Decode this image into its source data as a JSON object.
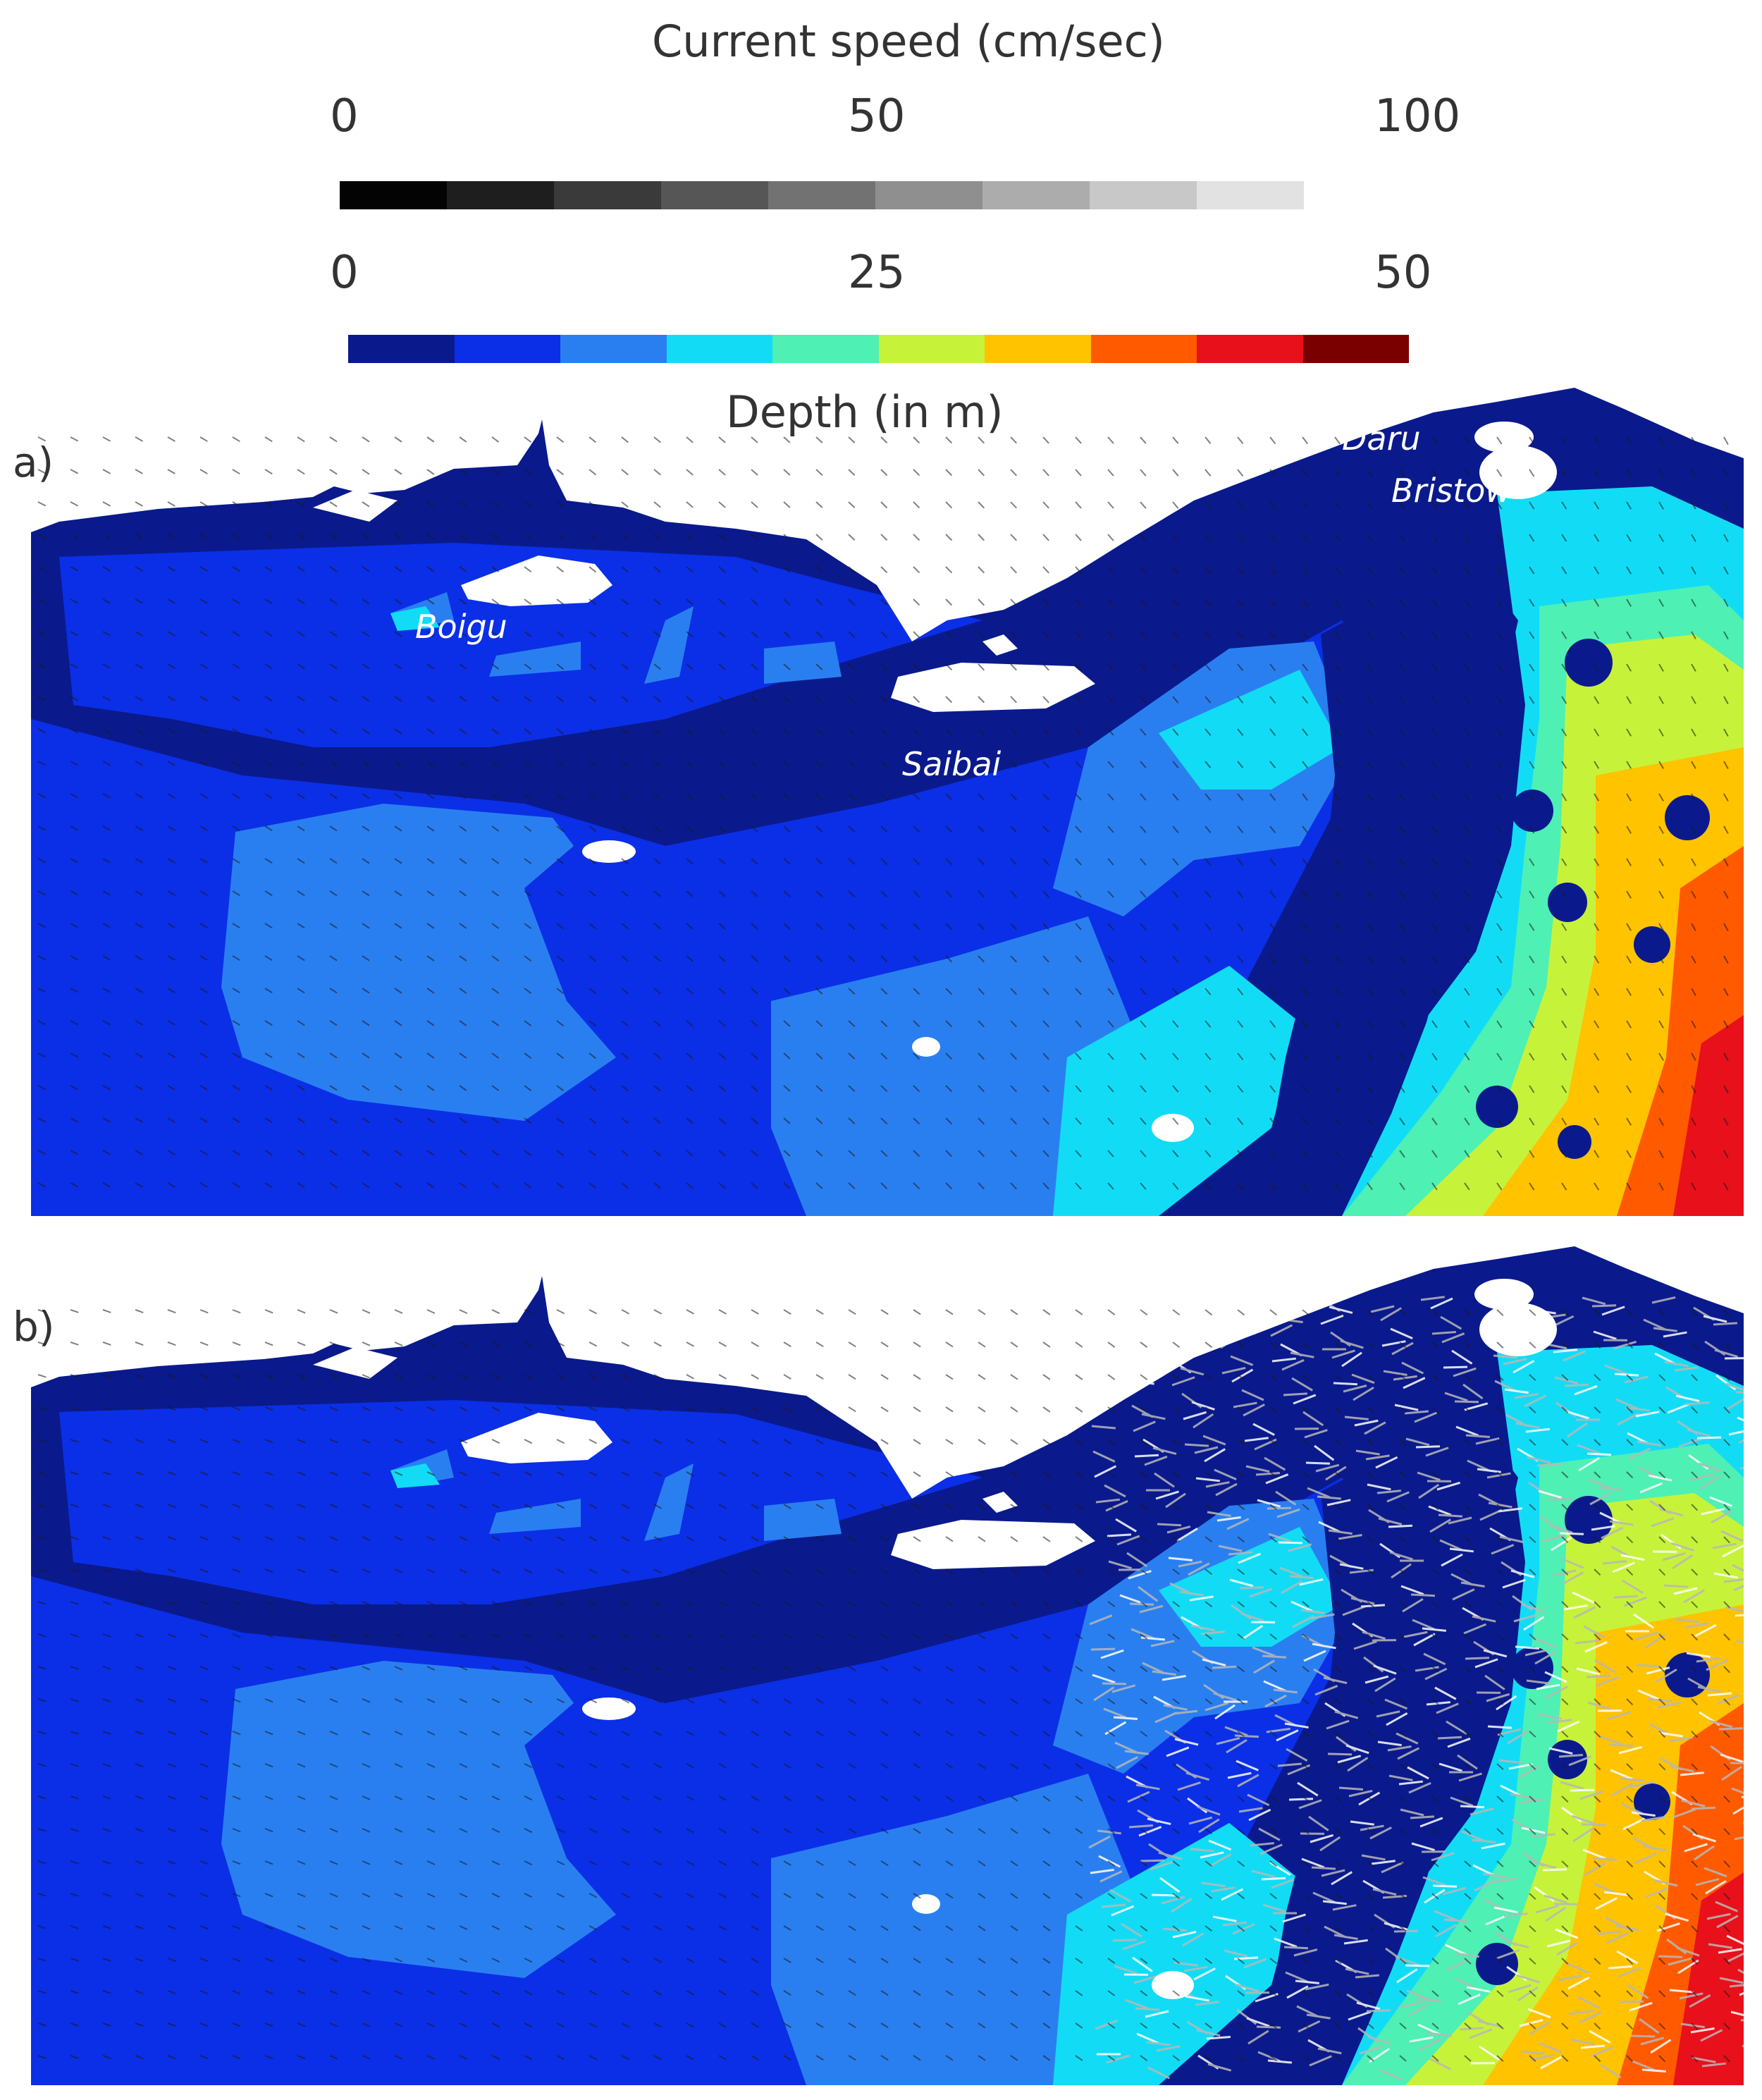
{
  "legend": {
    "speed": {
      "title": "Current speed (cm/sec)",
      "ticks": [
        "0",
        "50",
        "100"
      ],
      "colors": [
        "#030303",
        "#1e1e1e",
        "#3a3a3a",
        "#565656",
        "#727272",
        "#8f8f8f",
        "#acacac",
        "#c8c8c8",
        "#e2e2e2"
      ]
    },
    "depth": {
      "title": "Depth (in m)",
      "ticks": [
        "0",
        "25",
        "50"
      ],
      "colors": [
        "#0a1a8c",
        "#0b2fe6",
        "#2a7ff0",
        "#12dcf5",
        "#4ef0b4",
        "#c7f23a",
        "#ffc300",
        "#ff5a00",
        "#e8101a",
        "#7a0000"
      ]
    }
  },
  "panels": [
    {
      "label": "a)"
    },
    {
      "label": "b)"
    }
  ],
  "places": {
    "boigu": "Boigu",
    "saibai": "Saibai",
    "daru": "Daru",
    "bristow": "Bristow"
  }
}
